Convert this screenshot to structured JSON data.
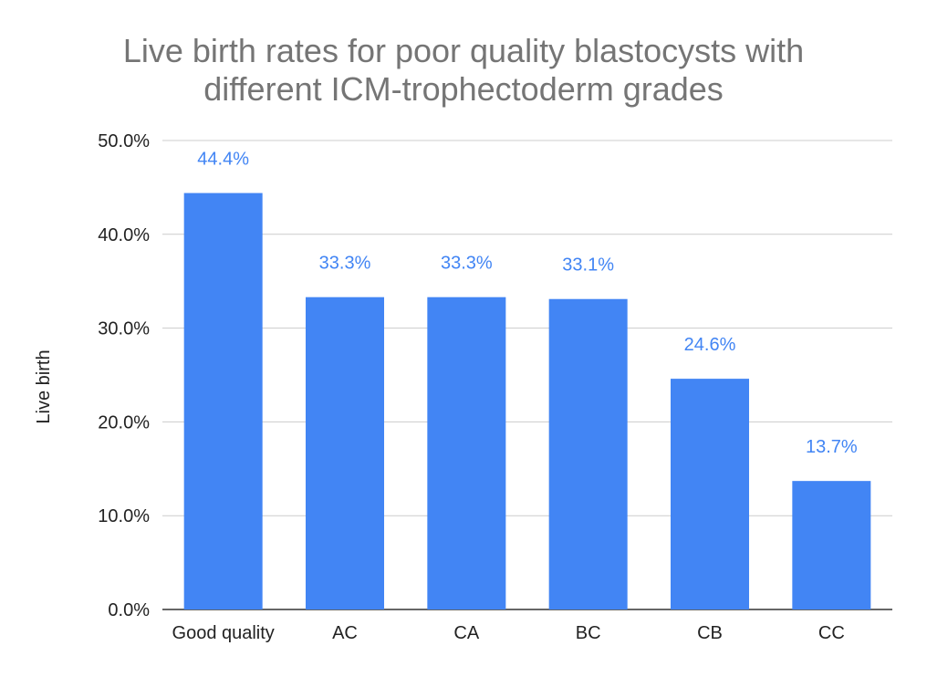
{
  "chart_data": {
    "type": "bar",
    "title_lines": [
      "Live birth rates for poor quality blastocysts with",
      "different ICM-trophectoderm grades"
    ],
    "ylabel": "Live birth",
    "xlabel": "",
    "categories": [
      "Good quality",
      "AC",
      "CA",
      "BC",
      "CB",
      "CC"
    ],
    "values": [
      0.444,
      0.333,
      0.333,
      0.331,
      0.246,
      0.137
    ],
    "data_labels": [
      "44.4%",
      "33.3%",
      "33.3%",
      "33.1%",
      "24.6%",
      "13.7%"
    ],
    "ylim": [
      0,
      0.5
    ],
    "y_ticks": [
      0,
      0.1,
      0.2,
      0.3,
      0.4,
      0.5
    ],
    "y_tick_labels": [
      "0.0%",
      "10.0%",
      "20.0%",
      "30.0%",
      "40.0%",
      "50.0%"
    ],
    "grid": true,
    "legend": "none",
    "bar_color": "#4285f4",
    "label_color": "#4285f4"
  }
}
